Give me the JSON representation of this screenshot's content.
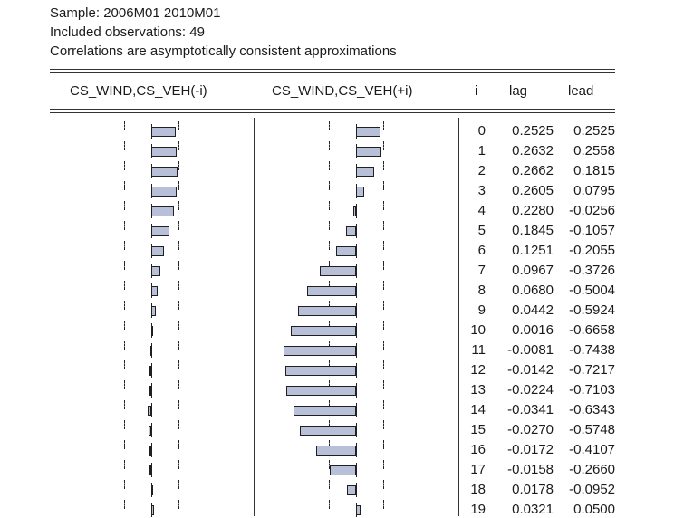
{
  "header": {
    "sample": "Sample: 2006M01 2010M01",
    "observations": "Included observations: 49",
    "note": "Correlations are asymptotically consistent approximations"
  },
  "columns": {
    "left_panel": "CS_WIND,CS_VEH(-i)",
    "right_panel": "CS_WIND,CS_VEH(+i)",
    "i": "i",
    "lag": "lag",
    "lead": "lead"
  },
  "colors": {
    "bar_fill": "#b7bfd9",
    "bar_border": "#202020"
  },
  "chart_data": {
    "type": "table",
    "columns": [
      "i",
      "lag",
      "lead"
    ],
    "rows": [
      {
        "i": "0",
        "lag": "0.2525",
        "lead": "0.2525"
      },
      {
        "i": "1",
        "lag": "0.2632",
        "lead": "0.2558"
      },
      {
        "i": "2",
        "lag": "0.2662",
        "lead": "0.1815"
      },
      {
        "i": "3",
        "lag": "0.2605",
        "lead": "0.0795"
      },
      {
        "i": "4",
        "lag": "0.2280",
        "lead": "-0.0256"
      },
      {
        "i": "5",
        "lag": "0.1845",
        "lead": "-0.1057"
      },
      {
        "i": "6",
        "lag": "0.1251",
        "lead": "-0.2055"
      },
      {
        "i": "7",
        "lag": "0.0967",
        "lead": "-0.3726"
      },
      {
        "i": "8",
        "lag": "0.0680",
        "lead": "-0.5004"
      },
      {
        "i": "9",
        "lag": "0.0442",
        "lead": "-0.5924"
      },
      {
        "i": "10",
        "lag": "0.0016",
        "lead": "-0.6658"
      },
      {
        "i": "11",
        "lag": "-0.0081",
        "lead": "-0.7438"
      },
      {
        "i": "12",
        "lag": "-0.0142",
        "lead": "-0.7217"
      },
      {
        "i": "13",
        "lag": "-0.0224",
        "lead": "-0.7103"
      },
      {
        "i": "14",
        "lag": "-0.0341",
        "lead": "-0.6343"
      },
      {
        "i": "15",
        "lag": "-0.0270",
        "lead": "-0.5748"
      },
      {
        "i": "16",
        "lag": "-0.0172",
        "lead": "-0.4107"
      },
      {
        "i": "17",
        "lag": "-0.0158",
        "lead": "-0.2660"
      },
      {
        "i": "18",
        "lag": "0.0178",
        "lead": "-0.0952"
      },
      {
        "i": "19",
        "lag": "0.0321",
        "lead": "0.0500"
      }
    ]
  }
}
